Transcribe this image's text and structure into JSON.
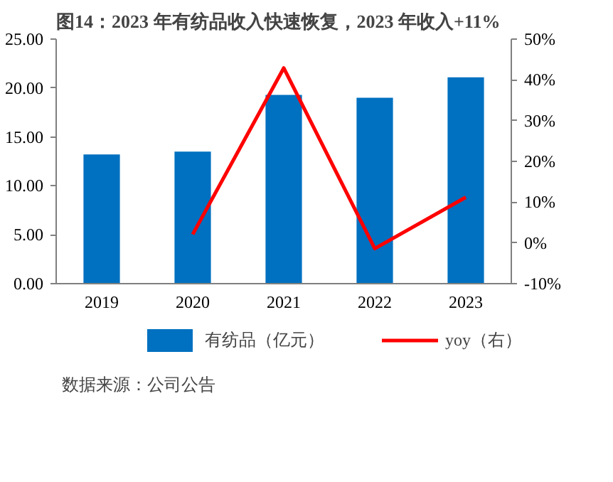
{
  "chart_data": {
    "type": "bar",
    "title": "图14：2023 年有纺品收入快速恢复，2023 年收入+11%",
    "categories": [
      "2019",
      "2020",
      "2021",
      "2022",
      "2023"
    ],
    "series": [
      {
        "name": "有纺品（亿元）",
        "color": "#0070c0",
        "values": [
          13.2,
          13.5,
          19.3,
          19.0,
          21.1
        ]
      },
      {
        "name": "yoy（右）",
        "type": "line",
        "axis": "y2",
        "color": "#ff0000",
        "values": [
          null,
          2.1,
          42.9,
          -1.4,
          11.2
        ]
      }
    ],
    "ylim": [
      0,
      25
    ],
    "yticks": [
      {
        "value": 0,
        "label": "0.00"
      },
      {
        "value": 5,
        "label": "5.00"
      },
      {
        "value": 10,
        "label": "10.00"
      },
      {
        "value": 15,
        "label": "15.00"
      },
      {
        "value": 20,
        "label": "20.00"
      },
      {
        "value": 25,
        "label": "25.00"
      }
    ],
    "y2lim": [
      -10,
      50
    ],
    "y2ticks": [
      {
        "value": -10,
        "label": "-10%"
      },
      {
        "value": 0,
        "label": "0%"
      },
      {
        "value": 10,
        "label": "10%"
      },
      {
        "value": 20,
        "label": "20%"
      },
      {
        "value": 30,
        "label": "30%"
      },
      {
        "value": 40,
        "label": "40%"
      },
      {
        "value": 50,
        "label": "50%"
      }
    ],
    "legend": "bottom",
    "grid": false,
    "marker": "none",
    "line_style": "solid",
    "annotations": [
      "数据来源：公司公告"
    ]
  }
}
